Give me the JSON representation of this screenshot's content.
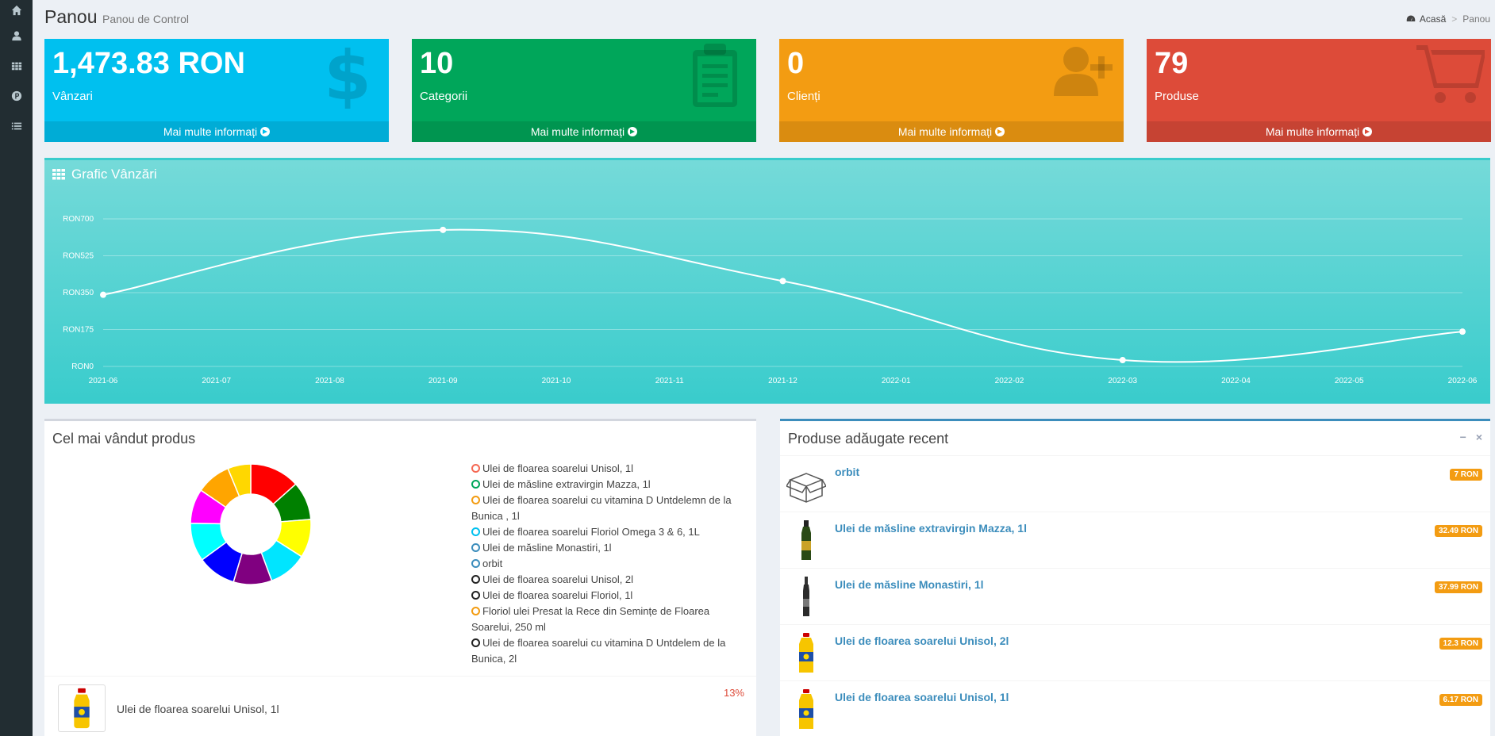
{
  "sidebar": {
    "icons": [
      "home-icon",
      "user-icon",
      "grid-icon",
      "parking-icon",
      "list-icon"
    ]
  },
  "header": {
    "title": "Panou",
    "subtitle": "Panou de Control",
    "breadcrumb": {
      "home": "Acasă",
      "current": "Panou",
      "separator": ">"
    }
  },
  "boxes": [
    {
      "value": "1,473.83 RON",
      "label": "Vânzari",
      "footer": "Mai multe informați",
      "color": "#00c0ef",
      "icon": "dollar-icon"
    },
    {
      "value": "10",
      "label": "Categorii",
      "footer": "Mai multe informați",
      "color": "#00a65a",
      "icon": "clipboard-icon"
    },
    {
      "value": "0",
      "label": "Clienți",
      "footer": "Mai multe informați",
      "color": "#f39c12",
      "icon": "user-plus-icon"
    },
    {
      "value": "79",
      "label": "Produse",
      "footer": "Mai multe informați",
      "color": "#dd4b39",
      "icon": "cart-icon"
    }
  ],
  "sales_chart": {
    "title": "Grafic Vânzări"
  },
  "chart_data": {
    "type": "line",
    "title": "Grafic Vânzări",
    "x": [
      "2021-06",
      "2021-07",
      "2021-08",
      "2021-09",
      "2021-10",
      "2021-11",
      "2021-12",
      "2022-01",
      "2022-02",
      "2022-03",
      "2022-04",
      "2022-05",
      "2022-06"
    ],
    "points": [
      {
        "x": "2021-06",
        "y": 340
      },
      {
        "x": "2021-09",
        "y": 648
      },
      {
        "x": "2021-12",
        "y": 405
      },
      {
        "x": "2022-03",
        "y": 30
      },
      {
        "x": "2022-06",
        "y": 165
      }
    ],
    "yticks": [
      0,
      175,
      350,
      525,
      700
    ],
    "ytick_labels": [
      "RON0",
      "RON175",
      "RON350",
      "RON525",
      "RON700"
    ],
    "ylim": [
      0,
      700
    ],
    "grid": true,
    "line_color": "#ffffff"
  },
  "best_seller": {
    "title": "Cel mai vândut produs",
    "legend": [
      {
        "label": "Ulei de floarea soarelui Unisol, 1l",
        "color": "#f56954"
      },
      {
        "label": "Ulei de măsline extravirgin Mazza, 1l",
        "color": "#00a65a"
      },
      {
        "label": "Ulei de floarea soarelui cu vitamina D Untdelemn de la Bunica , 1l",
        "color": "#f39c12"
      },
      {
        "label": "Ulei de floarea soarelui Floriol Omega 3 & 6, 1L",
        "color": "#00c0ef"
      },
      {
        "label": "Ulei de măsline Monastiri, 1l",
        "color": "#3c8dbc"
      },
      {
        "label": "orbit",
        "color": "#3c8dbc"
      },
      {
        "label": "Ulei de floarea soarelui Unisol, 2l",
        "color": "#222222"
      },
      {
        "label": "Ulei de floarea soarelui Floriol, 1l",
        "color": "#222222"
      },
      {
        "label": "Floriol ulei Presat la Rece din Semințe de Floarea Soarelui, 250 ml",
        "color": "#f39c12"
      },
      {
        "label": "Ulei de floarea soarelui cu vitamina D Untdelem de la Bunica, 2l",
        "color": "#222222"
      }
    ],
    "donut": [
      {
        "color": "#ff0000",
        "value": 13
      },
      {
        "color": "#008000",
        "value": 10
      },
      {
        "color": "#ffff00",
        "value": 10
      },
      {
        "color": "#00e5ff",
        "value": 10
      },
      {
        "color": "#800080",
        "value": 10
      },
      {
        "color": "#0000ff",
        "value": 10
      },
      {
        "color": "#00ffff",
        "value": 10
      },
      {
        "color": "#ff00ff",
        "value": 9
      },
      {
        "color": "#ffa500",
        "value": 9
      },
      {
        "color": "#ffd700",
        "value": 6
      }
    ],
    "item": {
      "name": "Ulei de floarea soarelui Unisol, 1l",
      "percent": "13%"
    }
  },
  "recent": {
    "title": "Produse adăugate recent",
    "collapse": "−",
    "close": "×",
    "items": [
      {
        "name": "orbit",
        "price": "7 RON",
        "image": "box-icon"
      },
      {
        "name": "Ulei de măsline extravirgin Mazza, 1l",
        "price": "32.49 RON",
        "image": "olive-oil-bottle"
      },
      {
        "name": "Ulei de măsline Monastiri, 1l",
        "price": "37.99 RON",
        "image": "dark-bottle"
      },
      {
        "name": "Ulei de floarea soarelui Unisol, 2l",
        "price": "12.3 RON",
        "image": "sunflower-oil-bottle"
      },
      {
        "name": "Ulei de floarea soarelui Unisol, 1l",
        "price": "6.17 RON",
        "image": "sunflower-oil-bottle"
      }
    ]
  }
}
